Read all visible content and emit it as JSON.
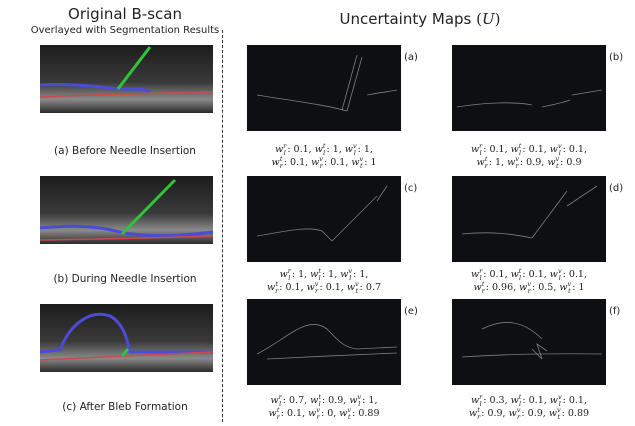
{
  "left": {
    "title": "Original B-scan",
    "subtitle": "Overlayed with Segmentation Results",
    "captions": [
      "(a) Before Needle Insertion",
      "(b) During Needle Insertion",
      "(c) After Bleb Formation"
    ]
  },
  "right": {
    "title": "Uncertainty Maps",
    "symbol": "U",
    "weight_symbol": "w",
    "panels": [
      {
        "label": "(a)",
        "lines": [
          [
            {
              "sub": "l",
              "sup": "r",
              "value": 0.1
            },
            {
              "sub": "l",
              "sup": "t",
              "value": 1
            },
            {
              "sub": "l",
              "sup": "v",
              "value": 1
            }
          ],
          [
            {
              "sub": "r",
              "sup": "t",
              "value": 0.1
            },
            {
              "sub": "r",
              "sup": "v",
              "value": 0.1
            },
            {
              "sub": "t",
              "sup": "v",
              "value": 1
            }
          ]
        ]
      },
      {
        "label": "(b)",
        "lines": [
          [
            {
              "sub": "l",
              "sup": "r",
              "value": 0.1
            },
            {
              "sub": "l",
              "sup": "t",
              "value": 0.1
            },
            {
              "sub": "l",
              "sup": "v",
              "value": 0.1
            }
          ],
          [
            {
              "sub": "r",
              "sup": "t",
              "value": 1
            },
            {
              "sub": "r",
              "sup": "v",
              "value": 0.9
            },
            {
              "sub": "t",
              "sup": "v",
              "value": 0.9
            }
          ]
        ]
      },
      {
        "label": "(c)",
        "lines": [
          [
            {
              "sub": "l",
              "sup": "r",
              "value": 1
            },
            {
              "sub": "l",
              "sup": "t",
              "value": 1
            },
            {
              "sub": "l",
              "sup": "v",
              "value": 1
            }
          ],
          [
            {
              "sub": "r",
              "sup": "t",
              "value": 0.1
            },
            {
              "sub": "r",
              "sup": "v",
              "value": 0.1
            },
            {
              "sub": "t",
              "sup": "v",
              "value": 0.7
            }
          ]
        ]
      },
      {
        "label": "(d)",
        "lines": [
          [
            {
              "sub": "l",
              "sup": "r",
              "value": 0.1
            },
            {
              "sub": "l",
              "sup": "t",
              "value": 0.1
            },
            {
              "sub": "l",
              "sup": "v",
              "value": 0.1
            }
          ],
          [
            {
              "sub": "r",
              "sup": "t",
              "value": 0.96
            },
            {
              "sub": "r",
              "sup": "v",
              "value": 0.5
            },
            {
              "sub": "t",
              "sup": "v",
              "value": 1
            }
          ]
        ]
      },
      {
        "label": "(e)",
        "lines": [
          [
            {
              "sub": "l",
              "sup": "r",
              "value": 0.7
            },
            {
              "sub": "l",
              "sup": "t",
              "value": 0.9
            },
            {
              "sub": "l",
              "sup": "v",
              "value": 1
            }
          ],
          [
            {
              "sub": "r",
              "sup": "t",
              "value": 0.1
            },
            {
              "sub": "r",
              "sup": "v",
              "value": 0
            },
            {
              "sub": "t",
              "sup": "v",
              "value": 0.89
            }
          ]
        ]
      },
      {
        "label": "(f)",
        "lines": [
          [
            {
              "sub": "l",
              "sup": "r",
              "value": 0.3
            },
            {
              "sub": "l",
              "sup": "t",
              "value": 0.1
            },
            {
              "sub": "l",
              "sup": "v",
              "value": 0.1
            }
          ],
          [
            {
              "sub": "r",
              "sup": "t",
              "value": 0.9
            },
            {
              "sub": "r",
              "sup": "v",
              "value": 0.9
            },
            {
              "sub": "t",
              "sup": "v",
              "value": 0.89
            }
          ]
        ]
      }
    ]
  }
}
